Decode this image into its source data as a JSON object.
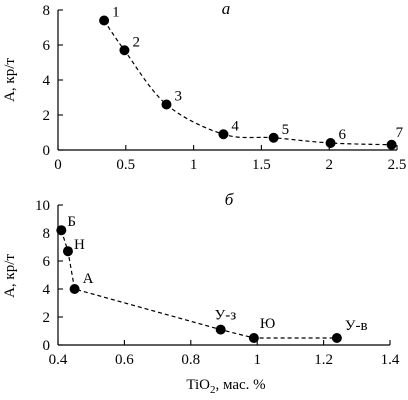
{
  "chart_data": [
    {
      "type": "scatter",
      "panel_letter": "a",
      "ylabel": "А, кр/т",
      "xlabel": "",
      "xlim": [
        0,
        2.5
      ],
      "ylim": [
        0,
        8
      ],
      "x_ticks": [
        0,
        0.5,
        1,
        1.5,
        2,
        2.5
      ],
      "x_tick_labels": [
        "0",
        "0.5",
        "1",
        "1.5",
        "2",
        "2.5"
      ],
      "y_ticks": [
        0,
        2,
        4,
        6,
        8
      ],
      "y_tick_labels": [
        "0",
        "2",
        "4",
        "6",
        "8"
      ],
      "line_style": "dashed",
      "grid": false,
      "points": [
        {
          "label": "1",
          "x": 0.34,
          "y": 7.4
        },
        {
          "label": "2",
          "x": 0.49,
          "y": 5.7
        },
        {
          "label": "3",
          "x": 0.8,
          "y": 2.6
        },
        {
          "label": "4",
          "x": 1.22,
          "y": 0.9
        },
        {
          "label": "5",
          "x": 1.59,
          "y": 0.7
        },
        {
          "label": "6",
          "x": 2.01,
          "y": 0.4
        },
        {
          "label": "7",
          "x": 2.46,
          "y": 0.3
        }
      ]
    },
    {
      "type": "scatter",
      "panel_letter": "б",
      "ylabel": "А, кр/т",
      "xlabel_main": "TiO",
      "xlabel_sub": "2",
      "xlabel_tail": ", мас. %",
      "xlim": [
        0.4,
        1.4
      ],
      "ylim": [
        0,
        10
      ],
      "x_ticks": [
        0.4,
        0.6,
        0.8,
        1.0,
        1.2,
        1.4
      ],
      "x_tick_labels": [
        "0.4",
        "0.6",
        "0.8",
        "1",
        "1.2",
        "1.4"
      ],
      "y_ticks": [
        0,
        2,
        4,
        6,
        8,
        10
      ],
      "y_tick_labels": [
        "0",
        "2",
        "4",
        "6",
        "8",
        "10"
      ],
      "line_style": "dashed",
      "grid": false,
      "points": [
        {
          "label": "Б",
          "x": 0.41,
          "y": 8.2
        },
        {
          "label": "Н",
          "x": 0.43,
          "y": 6.7
        },
        {
          "label": "А",
          "x": 0.45,
          "y": 4.0
        },
        {
          "label": "У-з",
          "x": 0.89,
          "y": 1.1
        },
        {
          "label": "Ю",
          "x": 0.99,
          "y": 0.5
        },
        {
          "label": "У-в",
          "x": 1.24,
          "y": 0.5
        }
      ],
      "curve_path": [
        [
          0.41,
          8.2
        ],
        [
          0.43,
          6.7
        ],
        [
          0.45,
          4.0
        ],
        [
          0.89,
          1.1
        ],
        [
          0.99,
          0.5
        ],
        [
          1.24,
          0.5
        ]
      ]
    }
  ]
}
